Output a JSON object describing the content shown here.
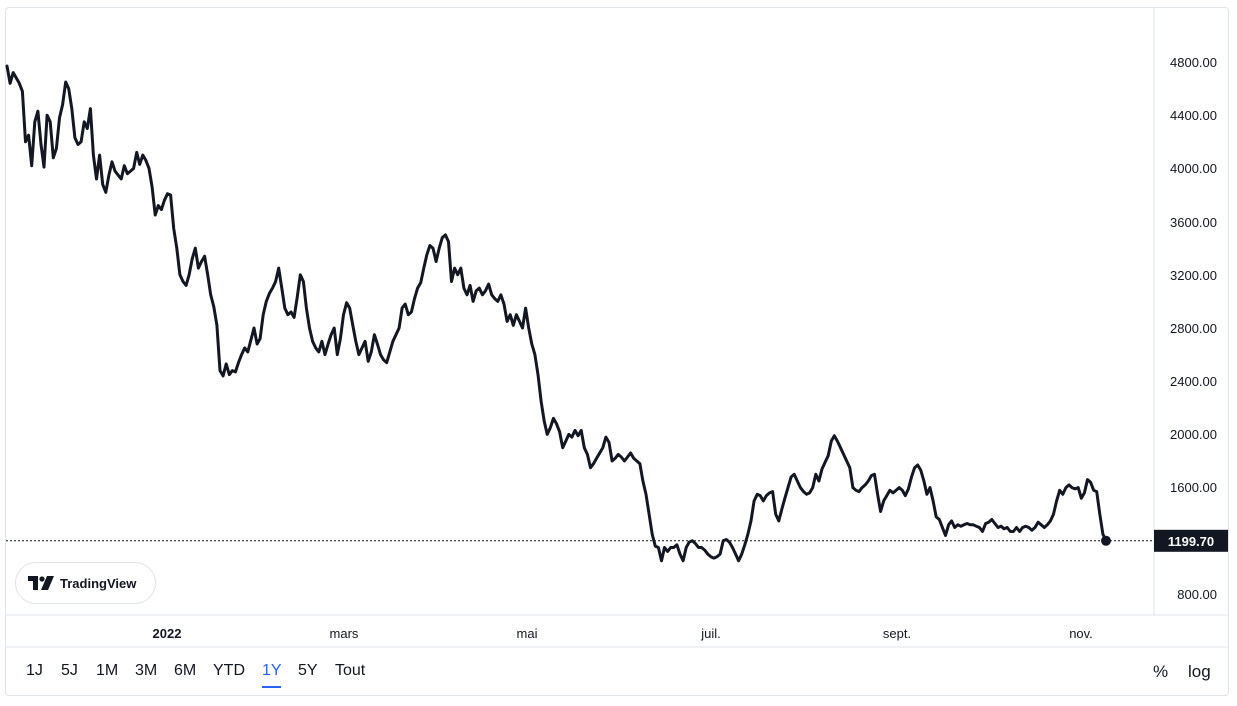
{
  "chart_data": {
    "type": "line",
    "y_ticks": [
      "4800.00",
      "4400.00",
      "4000.00",
      "3600.00",
      "3200.00",
      "2800.00",
      "2400.00",
      "2000.00",
      "1600.00",
      "800.00"
    ],
    "x_ticks": [
      "2022",
      "mars",
      "mai",
      "juil.",
      "sept.",
      "nov."
    ],
    "ylim": [
      600,
      5150
    ],
    "last_value_label": "1199.70",
    "last_value": 1199.7,
    "line_color": "#131722",
    "grid": false,
    "series": [
      {
        "values": [
          4770,
          4640,
          4720,
          4680,
          4640,
          4580,
          4200,
          4250,
          4020,
          4350,
          4430,
          4180,
          4010,
          4400,
          4350,
          4080,
          4150,
          4380,
          4480,
          4650,
          4600,
          4450,
          4230,
          4180,
          4200,
          4350,
          4300,
          4450,
          4100,
          3920,
          4100,
          3880,
          3820,
          3950,
          4050,
          3980,
          3950,
          3920,
          4020,
          3960,
          3980,
          4000,
          4120,
          4030,
          4100,
          4060,
          4000,
          3860,
          3650,
          3720,
          3690,
          3760,
          3810,
          3800,
          3550,
          3400,
          3200,
          3150,
          3120,
          3200,
          3320,
          3400,
          3250,
          3300,
          3340,
          3200,
          3050,
          2960,
          2820,
          2480,
          2440,
          2530,
          2450,
          2480,
          2470,
          2540,
          2600,
          2650,
          2620,
          2710,
          2800,
          2680,
          2720,
          2900,
          3000,
          3060,
          3100,
          3150,
          3250,
          3100,
          2950,
          2900,
          2920,
          2880,
          3030,
          3200,
          3150,
          2950,
          2800,
          2700,
          2650,
          2620,
          2700,
          2600,
          2680,
          2750,
          2800,
          2600,
          2720,
          2900,
          2990,
          2950,
          2820,
          2700,
          2600,
          2650,
          2700,
          2550,
          2620,
          2750,
          2680,
          2600,
          2560,
          2540,
          2620,
          2700,
          2750,
          2800,
          2950,
          2980,
          2900,
          2920,
          3020,
          3100,
          3140,
          3250,
          3350,
          3420,
          3400,
          3300,
          3400,
          3480,
          3500,
          3450,
          3150,
          3250,
          3200,
          3250,
          3100,
          3050,
          3120,
          3000,
          3080,
          3100,
          3050,
          3080,
          3130,
          3050,
          3020,
          3000,
          3050,
          2980,
          2850,
          2900,
          2820,
          2900,
          2850,
          2800,
          2950,
          2800,
          2680,
          2600,
          2450,
          2250,
          2100,
          2000,
          2050,
          2120,
          2080,
          2020,
          1900,
          1950,
          2000,
          1980,
          2030,
          1990,
          2030,
          1900,
          1850,
          1750,
          1780,
          1820,
          1860,
          1900,
          1980,
          1940,
          1800,
          1820,
          1850,
          1830,
          1800,
          1830,
          1860,
          1820,
          1800,
          1780,
          1650,
          1550,
          1400,
          1250,
          1160,
          1150,
          1050,
          1150,
          1120,
          1150,
          1150,
          1170,
          1100,
          1050,
          1150,
          1190,
          1200,
          1180,
          1150,
          1150,
          1130,
          1100,
          1080,
          1070,
          1080,
          1100,
          1200,
          1210,
          1190,
          1150,
          1100,
          1050,
          1100,
          1170,
          1250,
          1350,
          1500,
          1550,
          1540,
          1500,
          1540,
          1560,
          1570,
          1400,
          1350,
          1440,
          1520,
          1600,
          1680,
          1700,
          1650,
          1600,
          1570,
          1550,
          1560,
          1600,
          1700,
          1650,
          1740,
          1790,
          1840,
          1950,
          1990,
          1950,
          1900,
          1850,
          1800,
          1750,
          1600,
          1580,
          1570,
          1600,
          1620,
          1650,
          1690,
          1700,
          1550,
          1420,
          1500,
          1540,
          1580,
          1560,
          1580,
          1600,
          1580,
          1540,
          1590,
          1680,
          1750,
          1770,
          1730,
          1650,
          1550,
          1600,
          1500,
          1380,
          1360,
          1300,
          1240,
          1320,
          1350,
          1300,
          1320,
          1310,
          1320,
          1330,
          1320,
          1320,
          1310,
          1300,
          1270,
          1330,
          1340,
          1360,
          1330,
          1300,
          1310,
          1290,
          1300,
          1270,
          1270,
          1300,
          1270,
          1300,
          1310,
          1300,
          1280,
          1300,
          1340,
          1320,
          1300,
          1320,
          1350,
          1400,
          1500,
          1580,
          1550,
          1600,
          1620,
          1600,
          1590,
          1600,
          1520,
          1560,
          1660,
          1640,
          1580,
          1570,
          1400,
          1250,
          1200
        ]
      }
    ]
  },
  "logo": {
    "text": "TradingView"
  },
  "toolbar": {
    "ranges": [
      "1J",
      "5J",
      "1M",
      "3M",
      "6M",
      "YTD",
      "1Y",
      "5Y",
      "Tout"
    ],
    "active_range": "1Y",
    "percent_label": "%",
    "log_label": "log"
  },
  "colors": {
    "accent": "#2962ff",
    "line": "#131722",
    "border": "#e0e3eb"
  }
}
